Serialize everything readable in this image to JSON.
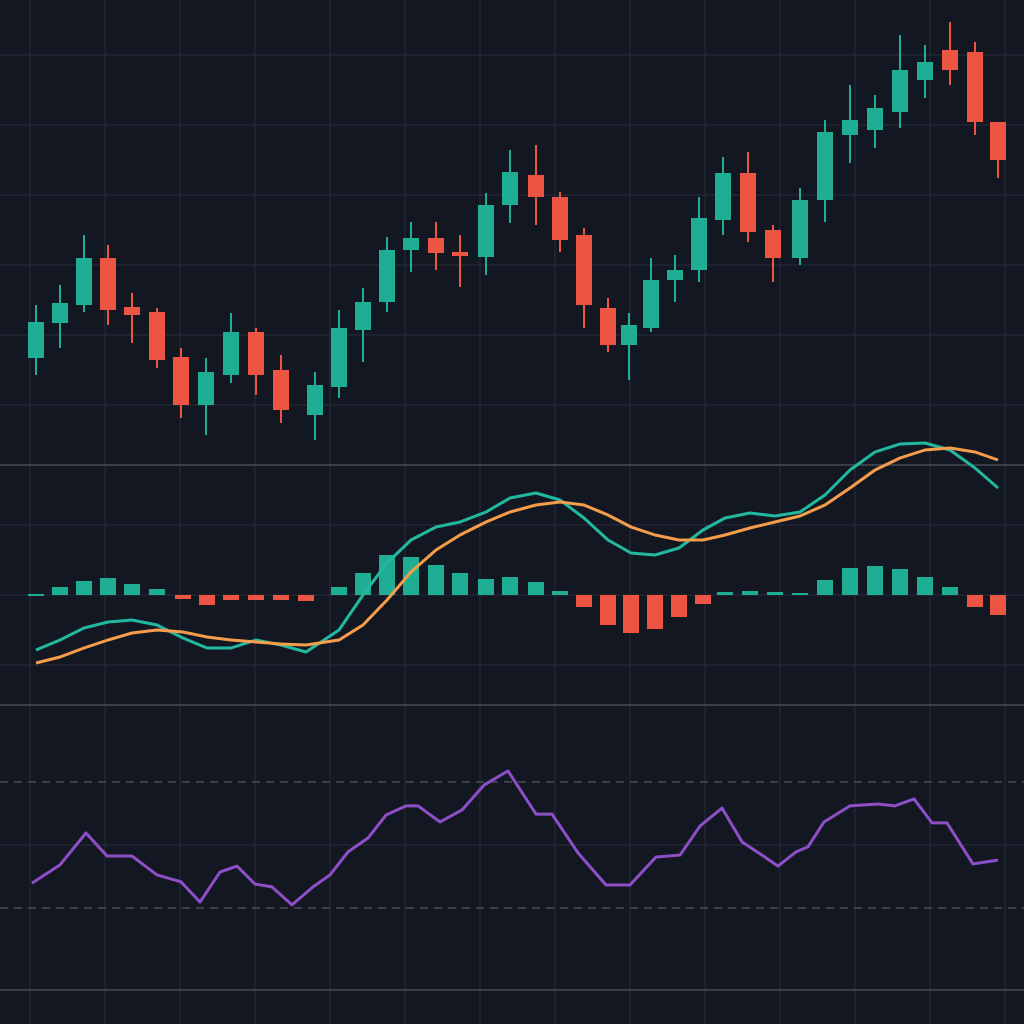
{
  "chart_data": [
    {
      "type": "candlestick",
      "x": [
        36,
        60,
        84,
        108,
        132,
        157,
        181,
        206,
        231,
        256,
        281,
        315,
        339,
        363,
        387,
        411,
        436,
        460,
        486,
        510,
        536,
        560,
        584,
        608,
        629,
        651,
        675,
        699,
        723,
        748,
        773,
        800,
        825,
        850,
        875,
        900,
        925,
        950,
        975,
        998
      ],
      "open": [
        102,
        137,
        155,
        202,
        153,
        148,
        103,
        55,
        85,
        128,
        90,
        45,
        73,
        130,
        158,
        210,
        222,
        208,
        203,
        255,
        285,
        263,
        225,
        152,
        115,
        132,
        180,
        190,
        240,
        287,
        230,
        202,
        260,
        325,
        330,
        348,
        380,
        410,
        408,
        338
      ],
      "high": [
        155,
        175,
        225,
        215,
        167,
        152,
        112,
        102,
        147,
        132,
        105,
        88,
        150,
        172,
        223,
        238,
        238,
        225,
        267,
        310,
        315,
        268,
        232,
        162,
        147,
        202,
        205,
        263,
        303,
        308,
        235,
        272,
        340,
        375,
        365,
        425,
        415,
        438,
        418,
        338
      ],
      "low": [
        85,
        112,
        148,
        135,
        117,
        92,
        42,
        25,
        77,
        65,
        37,
        20,
        62,
        98,
        148,
        188,
        190,
        173,
        185,
        237,
        235,
        208,
        132,
        108,
        80,
        128,
        158,
        178,
        225,
        218,
        178,
        195,
        238,
        297,
        312,
        332,
        362,
        375,
        325,
        282
      ],
      "close": [
        138,
        157,
        202,
        150,
        145,
        100,
        55,
        88,
        128,
        85,
        50,
        75,
        132,
        158,
        210,
        222,
        207,
        204,
        255,
        288,
        263,
        220,
        155,
        115,
        135,
        180,
        190,
        242,
        287,
        228,
        202,
        260,
        328,
        340,
        352,
        390,
        398,
        390,
        338,
        300
      ],
      "up_color": "#1fae94",
      "down_color": "#ec5444",
      "xlim": [
        0,
        1024
      ],
      "ylim": [
        0,
        460
      ],
      "xticks": [
        30,
        105,
        180,
        255,
        330,
        405,
        480,
        555,
        630,
        705,
        780,
        855,
        930,
        1005
      ],
      "yticks": [
        55,
        125,
        195,
        265,
        335,
        405
      ],
      "grid": true
    },
    {
      "type": "macd",
      "x": [
        36,
        60,
        84,
        108,
        132,
        157,
        183,
        207,
        231,
        256,
        281,
        306,
        339,
        363,
        387,
        411,
        436,
        460,
        486,
        510,
        536,
        560,
        584,
        608,
        631,
        655,
        679,
        703,
        725,
        750,
        775,
        800,
        825,
        850,
        875,
        900,
        925,
        950,
        975,
        998
      ],
      "histogram": [
        1,
        8,
        14,
        17,
        11,
        6,
        -4,
        -10,
        -5,
        -5,
        -5,
        -6,
        8,
        22,
        40,
        38,
        30,
        22,
        16,
        18,
        13,
        4,
        -12,
        -30,
        -38,
        -34,
        -22,
        -9,
        3,
        4,
        3,
        2,
        15,
        27,
        29,
        26,
        18,
        8,
        -12,
        -20
      ],
      "up_color": "#1fae94",
      "down_color": "#ec5444",
      "series": [
        {
          "color": "#22b8a0",
          "values": [
            -55,
            -45,
            -33,
            -27,
            -25,
            -30,
            -43,
            -53,
            -53,
            -45,
            -50,
            -57,
            -35,
            0,
            32,
            55,
            68,
            73,
            83,
            97,
            102,
            95,
            77,
            55,
            42,
            40,
            47,
            65,
            77,
            82,
            79,
            83,
            100,
            125,
            143,
            151,
            152,
            145,
            127,
            107
          ]
        },
        {
          "color": "#f59d4a",
          "values": [
            -68,
            -62,
            -53,
            -45,
            -38,
            -35,
            -37,
            -42,
            -45,
            -47,
            -49,
            -50,
            -45,
            -30,
            -5,
            23,
            45,
            60,
            73,
            83,
            90,
            93,
            90,
            80,
            68,
            60,
            55,
            55,
            60,
            67,
            73,
            79,
            90,
            107,
            125,
            137,
            145,
            147,
            143,
            135
          ]
        }
      ],
      "xlim": [
        0,
        1024
      ],
      "ylim": [
        -110,
        130
      ],
      "yticks": [
        70,
        0,
        -70
      ],
      "grid": true
    },
    {
      "type": "line",
      "x": [
        32,
        60,
        86,
        107,
        132,
        157,
        181,
        200,
        220,
        237,
        255,
        272,
        292,
        313,
        330,
        348,
        368,
        386,
        406,
        418,
        440,
        462,
        484,
        508,
        536,
        552,
        578,
        606,
        630,
        656,
        680,
        700,
        722,
        742,
        762,
        778,
        796,
        808,
        824,
        850,
        878,
        895,
        914,
        932,
        947,
        973,
        998
      ],
      "values": [
        37.9,
        43.7,
        53.8,
        46.5,
        46.5,
        40.5,
        38.3,
        31.9,
        41.4,
        43.3,
        37.6,
        36.7,
        31,
        36.7,
        40.5,
        47.8,
        52.2,
        59.5,
        62.4,
        62.4,
        57.3,
        61.1,
        69,
        73.5,
        59.8,
        59.8,
        47.5,
        37.3,
        37.3,
        46.2,
        46.8,
        56,
        61.7,
        51,
        46.8,
        43.3,
        47.8,
        49.4,
        57.3,
        62.4,
        63,
        62.4,
        64.6,
        57,
        57,
        44,
        45.2
      ],
      "color": "#8e4ec6",
      "xlim": [
        0,
        1024
      ],
      "ylim": [
        4,
        94.4
      ],
      "yticks": [
        50
      ],
      "levels": [
        30,
        70
      ],
      "grid": true
    }
  ]
}
